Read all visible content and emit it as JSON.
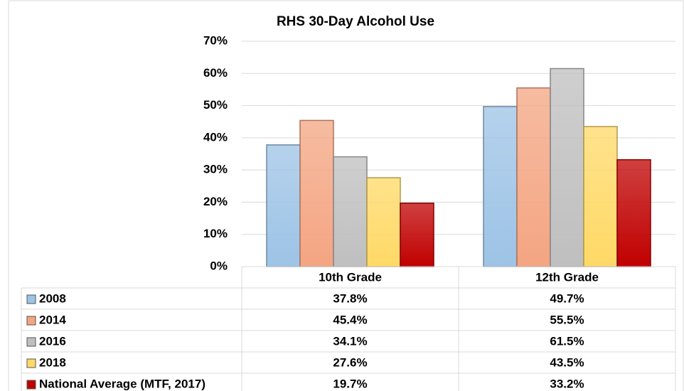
{
  "chart_data": {
    "type": "bar",
    "title": "RHS 30-Day Alcohol Use",
    "categories": [
      "10th Grade",
      "12th Grade"
    ],
    "series": [
      {
        "name": "2008",
        "color": "#9dc3e6",
        "values": [
          37.8,
          49.7
        ],
        "value_labels": [
          "37.8%",
          "49.7%"
        ]
      },
      {
        "name": "2014",
        "color": "#f4a582",
        "values": [
          45.4,
          55.5
        ],
        "value_labels": [
          "45.4%",
          "55.5%"
        ]
      },
      {
        "name": "2016",
        "color": "#bfbfbf",
        "values": [
          34.1,
          61.5
        ],
        "value_labels": [
          "34.1%",
          "61.5%"
        ]
      },
      {
        "name": "2018",
        "color": "#ffd966",
        "values": [
          27.6,
          43.5
        ],
        "value_labels": [
          "27.6%",
          "43.5%"
        ]
      },
      {
        "name": "National Average (MTF, 2017)",
        "color": "#c00000",
        "values": [
          19.7,
          33.2
        ],
        "value_labels": [
          "19.7%",
          "33.2%"
        ]
      }
    ],
    "ylim": [
      0,
      70
    ],
    "yticks": [
      {
        "value": 0,
        "label": "0%"
      },
      {
        "value": 10,
        "label": "10%"
      },
      {
        "value": 20,
        "label": "20%"
      },
      {
        "value": 30,
        "label": "30%"
      },
      {
        "value": 40,
        "label": "40%"
      },
      {
        "value": 50,
        "label": "50%"
      },
      {
        "value": 60,
        "label": "60%"
      },
      {
        "value": 70,
        "label": "70%"
      }
    ],
    "grid": true
  }
}
